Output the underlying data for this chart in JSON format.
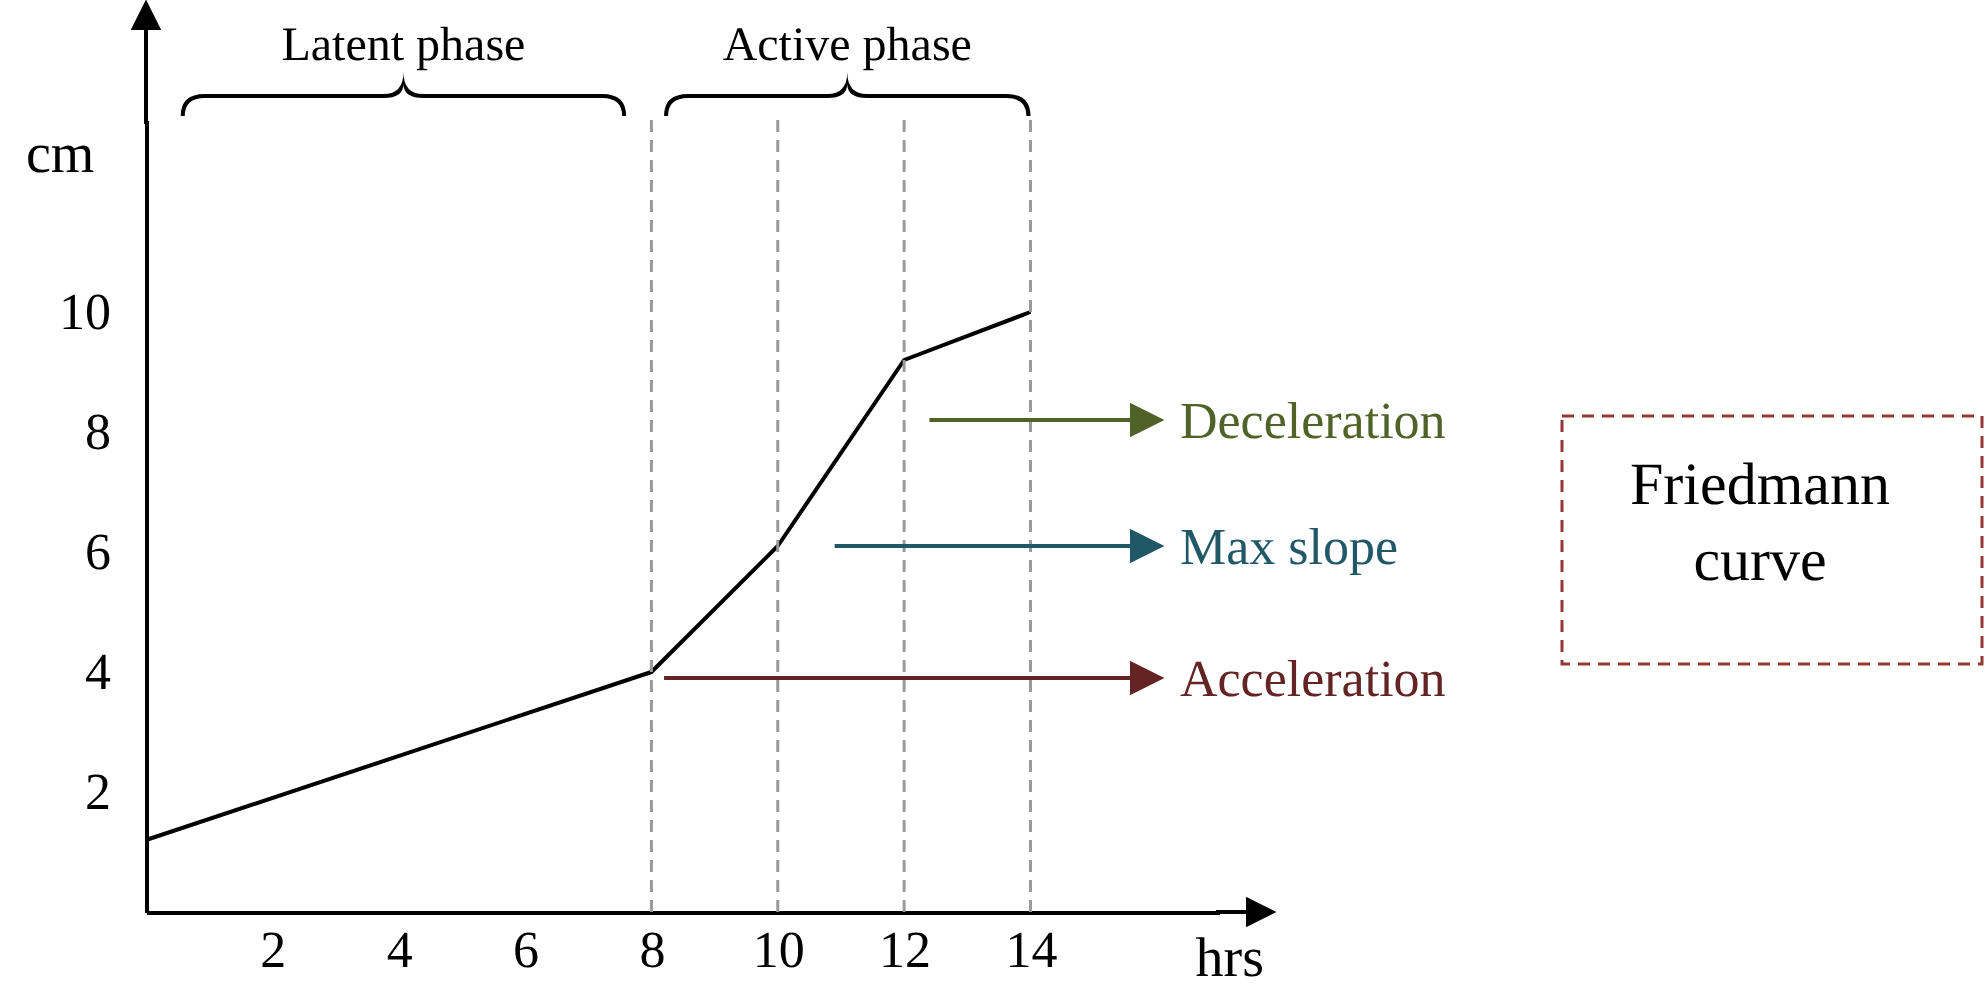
{
  "chart_data": {
    "type": "line",
    "xlabel": "hrs",
    "ylabel": "cm",
    "x": [
      0,
      8,
      10,
      12,
      14
    ],
    "series": [
      {
        "color": "#000000",
        "values": [
          1.2,
          4,
          6.1,
          9.2,
          10
        ]
      }
    ],
    "xlim": [
      0,
      17
    ],
    "ylim": [
      0,
      13.2
    ],
    "xticks": [
      2,
      4,
      6,
      8,
      10,
      12,
      14
    ],
    "yticks": [
      2,
      4,
      6,
      8,
      10
    ],
    "grid": false,
    "marker": "none",
    "line_style": "solid",
    "ref_lines": [
      {
        "axis": "x",
        "value": 8,
        "color": "#999999",
        "line_style": "dashed"
      },
      {
        "axis": "x",
        "value": 10,
        "color": "#999999",
        "line_style": "dashed"
      },
      {
        "axis": "x",
        "value": 12,
        "color": "#999999",
        "line_style": "dashed"
      },
      {
        "axis": "x",
        "value": 14,
        "color": "#999999",
        "line_style": "dashed"
      }
    ],
    "annotations": [
      "Latent phase",
      "Active phase",
      "Deceleration",
      "Max slope",
      "Acceleration",
      "Friedmann curve"
    ]
  }
}
